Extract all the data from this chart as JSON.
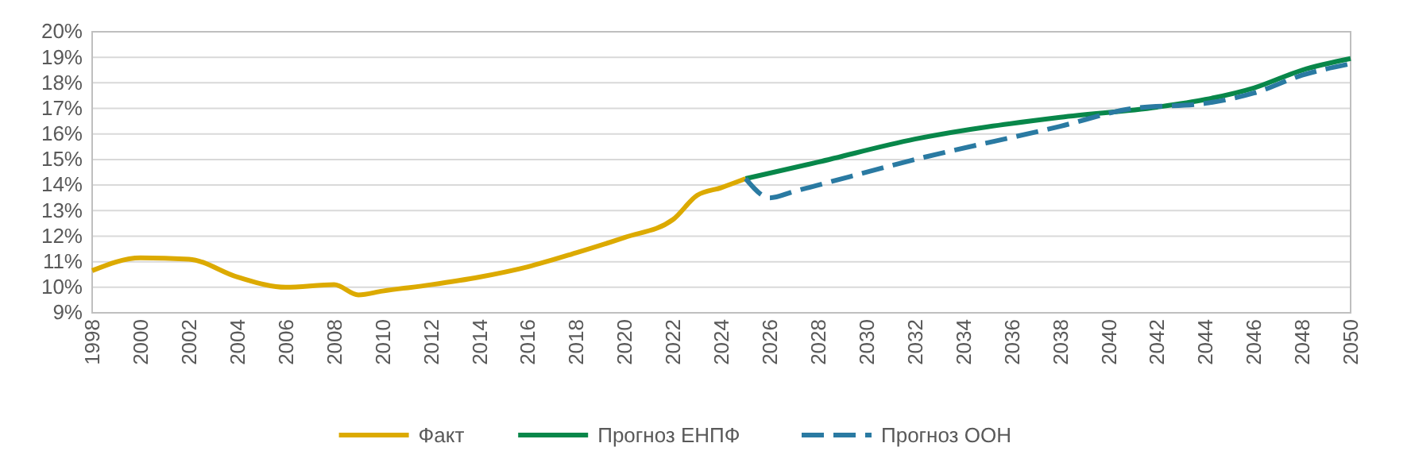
{
  "chart_data": {
    "type": "line",
    "ylim": [
      9,
      20
    ],
    "xlim": [
      1998,
      2050
    ],
    "yticks": [
      {
        "value": 9,
        "label": "9%"
      },
      {
        "value": 10,
        "label": "10%"
      },
      {
        "value": 11,
        "label": "11%"
      },
      {
        "value": 12,
        "label": "12%"
      },
      {
        "value": 13,
        "label": "13%"
      },
      {
        "value": 14,
        "label": "14%"
      },
      {
        "value": 15,
        "label": "15%"
      },
      {
        "value": 16,
        "label": "16%"
      },
      {
        "value": 17,
        "label": "17%"
      },
      {
        "value": 18,
        "label": "18%"
      },
      {
        "value": 19,
        "label": "19%"
      },
      {
        "value": 20,
        "label": "20%"
      }
    ],
    "xticks": [
      1998,
      2000,
      2002,
      2004,
      2006,
      2008,
      2010,
      2012,
      2014,
      2016,
      2018,
      2020,
      2022,
      2024,
      2026,
      2028,
      2030,
      2032,
      2034,
      2036,
      2038,
      2040,
      2042,
      2044,
      2046,
      2048,
      2050
    ],
    "grid": "y",
    "legend": "bottom",
    "marker": "none",
    "series": [
      {
        "name": "Факт",
        "color": "#dcaa00",
        "line_style": "solid",
        "x": [
          1998,
          2000,
          2002,
          2004,
          2006,
          2008,
          2009,
          2010,
          2012,
          2014,
          2016,
          2018,
          2020,
          2022,
          2023,
          2024,
          2025
        ],
        "values": [
          10.65,
          11.15,
          11.1,
          10.4,
          10.0,
          10.1,
          9.7,
          9.85,
          10.1,
          10.4,
          10.8,
          11.35,
          11.95,
          12.65,
          13.6,
          13.9,
          14.25
        ]
      },
      {
        "name": "Прогноз ЕНПФ",
        "color": "#08874a",
        "line_style": "solid",
        "x": [
          2025,
          2028,
          2032,
          2038,
          2042,
          2044,
          2046,
          2048,
          2050
        ],
        "values": [
          14.25,
          14.9,
          15.8,
          16.65,
          17.05,
          17.35,
          17.8,
          18.5,
          18.95
        ]
      },
      {
        "name": "Прогноз ООН",
        "color": "#2a7aa2",
        "line_style": "dashed",
        "x": [
          2025,
          2026,
          2027,
          2028,
          2032,
          2038,
          2041,
          2044,
          2046,
          2048,
          2050
        ],
        "values": [
          14.25,
          13.5,
          13.75,
          14.0,
          15.0,
          16.3,
          17.0,
          17.2,
          17.6,
          18.3,
          18.75
        ]
      }
    ]
  }
}
